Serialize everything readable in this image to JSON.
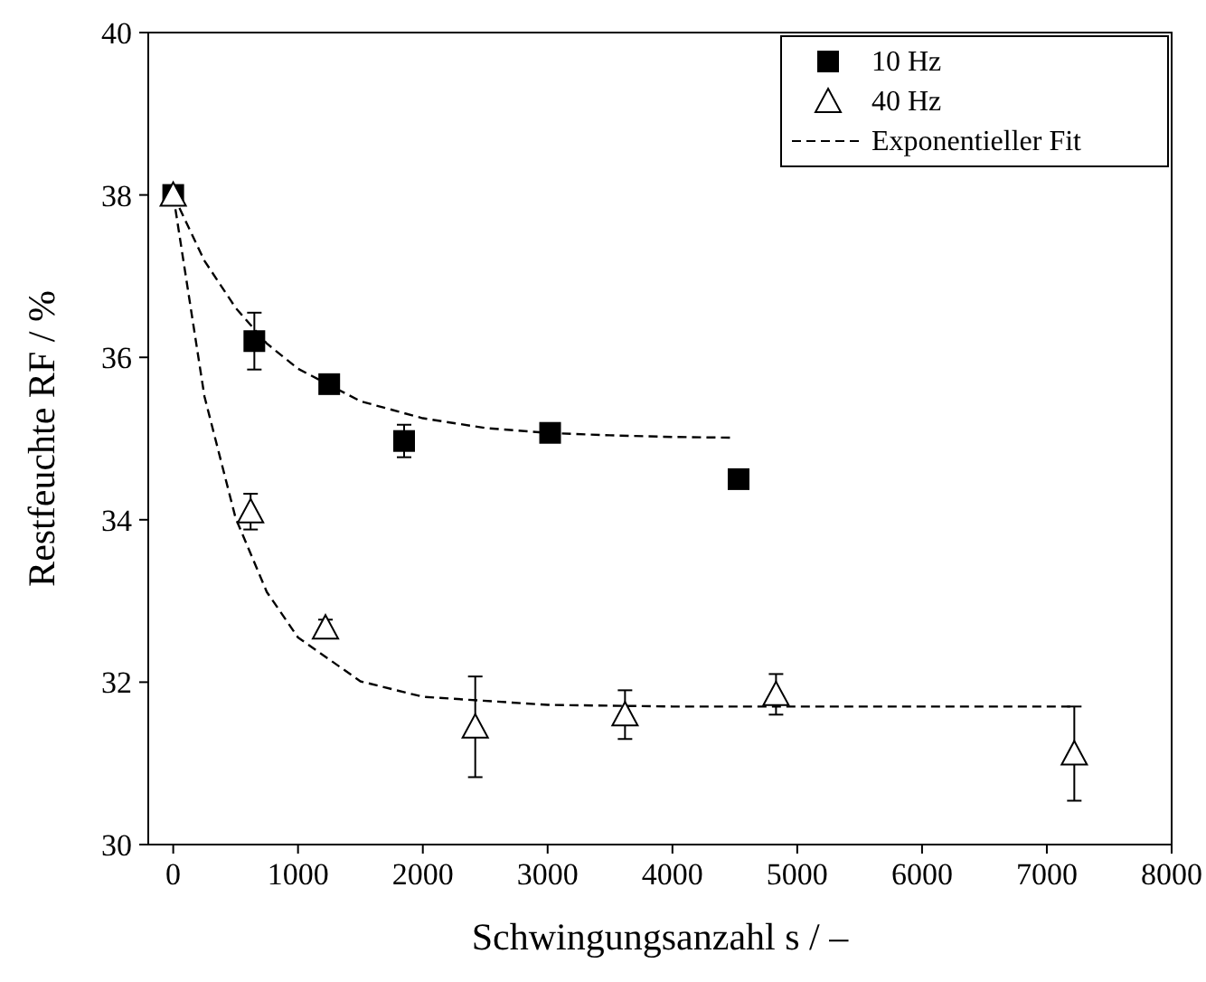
{
  "chart_data": {
    "type": "scatter",
    "xlabel": "Schwingungsanzahl s / –",
    "ylabel": "Restfeuchte RF / %",
    "xlim": [
      -200,
      8000
    ],
    "xticks": [
      0,
      1000,
      2000,
      3000,
      4000,
      5000,
      6000,
      7000,
      8000
    ],
    "ylim": [
      30,
      40
    ],
    "yticks": [
      30,
      32,
      34,
      36,
      38,
      40
    ],
    "grid": false,
    "legend": "top right",
    "series": [
      {
        "name": "10 Hz",
        "marker": "square",
        "color": "#000000",
        "x": [
          0,
          650,
          1250,
          1850,
          3020,
          4530
        ],
        "values": [
          38,
          36.2,
          35.67,
          34.97,
          35.07,
          34.5
        ],
        "errors": [
          null,
          0.35,
          null,
          0.2,
          null,
          null
        ]
      },
      {
        "name": "40 Hz",
        "marker": "triangle",
        "color": "#000000",
        "x": [
          0,
          620,
          1220,
          2420,
          3620,
          4830,
          7220
        ],
        "values": [
          38,
          34.1,
          32.67,
          31.45,
          31.6,
          31.85,
          31.12
        ],
        "errors": [
          null,
          0.22,
          0.1,
          0.62,
          0.3,
          0.25,
          0.58
        ]
      },
      {
        "name": "Exponentieller Fit",
        "type": "line",
        "marker": "none",
        "line_style": "dashed",
        "color": "#000000",
        "x": [
          0,
          250,
          500,
          750,
          1000,
          1500,
          2000,
          2500,
          3000,
          3500,
          4000,
          4500
        ],
        "values": [
          38,
          37.19,
          36.61,
          36.17,
          35.86,
          35.46,
          35.25,
          35.13,
          35.07,
          35.04,
          35.02,
          35.01
        ]
      },
      {
        "type": "line",
        "marker": "none",
        "line_style": "dashed",
        "color": "#000000",
        "x": [
          0,
          250,
          500,
          750,
          1000,
          1500,
          2000,
          3000,
          4000,
          5000,
          6000,
          7200
        ],
        "values": [
          38,
          35.52,
          34.02,
          33.11,
          32.55,
          32.01,
          31.82,
          31.72,
          31.7,
          31.7,
          31.7,
          31.7
        ]
      }
    ]
  }
}
